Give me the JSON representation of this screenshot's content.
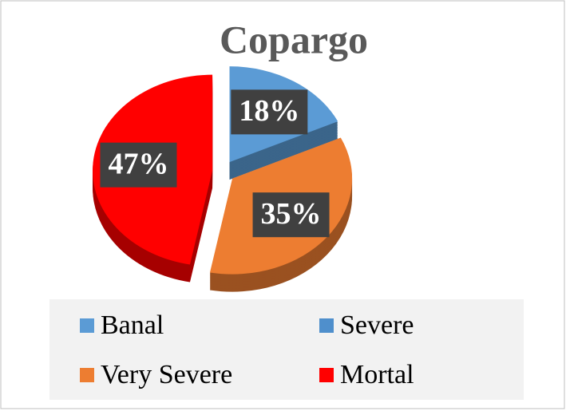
{
  "chart_data": {
    "type": "pie",
    "title": "Copargo",
    "categories": [
      "Banal",
      "Severe",
      "Very Severe",
      "Mortal"
    ],
    "values": [
      18,
      0,
      35,
      47
    ],
    "value_labels": [
      "18%",
      null,
      "35%",
      "47%"
    ],
    "colors": [
      "#5b9bd5",
      "#4f8fcc",
      "#ed7d31",
      "#ff0000"
    ]
  }
}
